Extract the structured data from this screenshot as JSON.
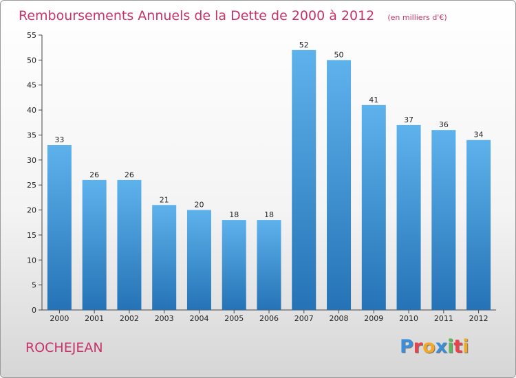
{
  "chart_data": {
    "type": "bar",
    "title": "Remboursements Annuels de la Dette de 2000 à 2012",
    "subtitle": "(en milliers d'€)",
    "categories": [
      "2000",
      "2001",
      "2002",
      "2003",
      "2004",
      "2005",
      "2006",
      "2007",
      "2008",
      "2009",
      "2010",
      "2011",
      "2012"
    ],
    "values": [
      33,
      26,
      26,
      21,
      20,
      18,
      18,
      52,
      50,
      41,
      37,
      36,
      34
    ],
    "ylim": [
      0,
      55
    ],
    "yticks": [
      0,
      5,
      10,
      15,
      20,
      25,
      30,
      35,
      40,
      45,
      50,
      55
    ],
    "grid": false,
    "xlabel": "",
    "ylabel": ""
  },
  "footer": {
    "commune": "ROCHEJEAN",
    "logo_letters": [
      "P",
      "r",
      "o",
      "x",
      "i",
      "t",
      "i"
    ],
    "logo_colors": [
      "#3b8fd8",
      "#e8424c",
      "#f0a928",
      "#3b8fd8",
      "#5cb85c",
      "#e8424c",
      "#f0a928"
    ]
  },
  "colors": {
    "title": "#c8336a",
    "bar_top": "#5eb2ec",
    "bar_bottom": "#2573b6"
  }
}
